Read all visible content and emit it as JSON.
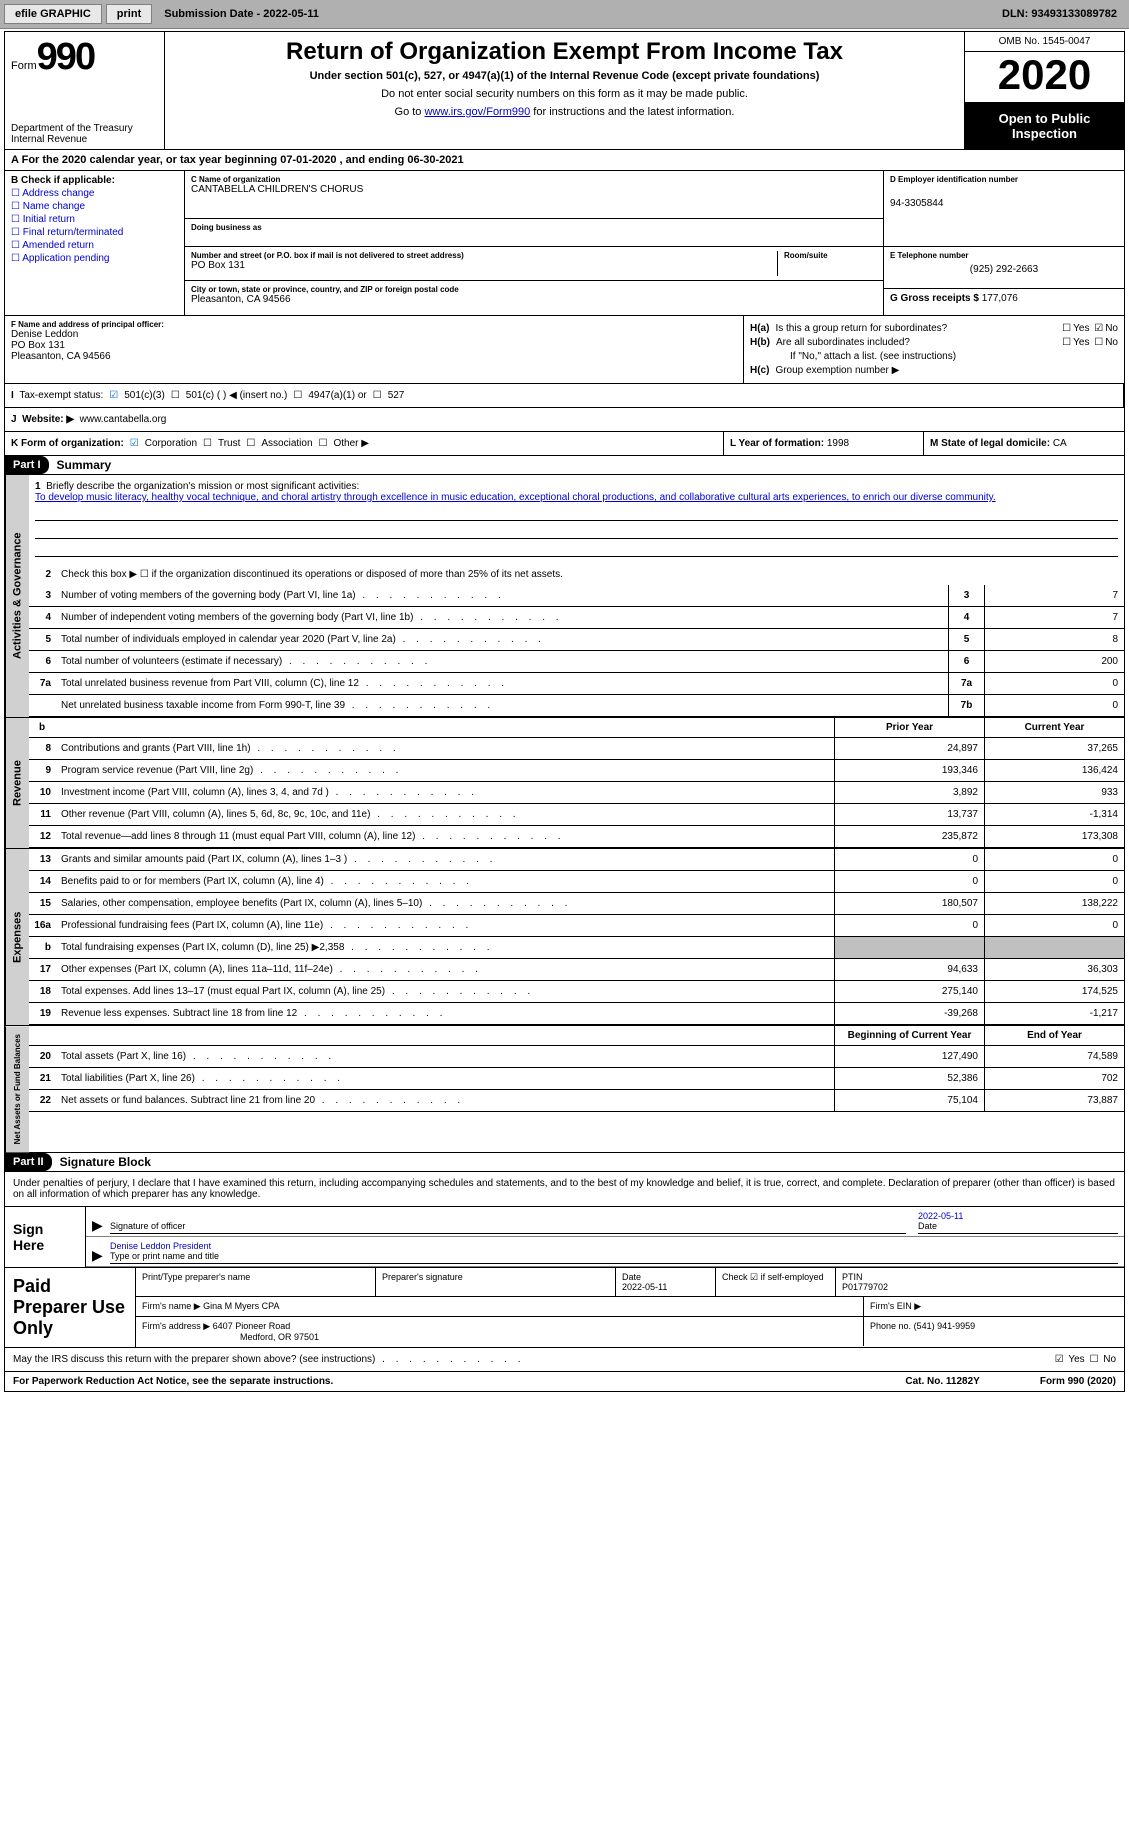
{
  "toolbar": {
    "efile": "efile GRAPHIC",
    "print": "print",
    "submission": "Submission Date - 2022-05-11",
    "dln": "DLN: 93493133089782"
  },
  "header": {
    "form_label": "Form",
    "form_number": "990",
    "dept": "Department of the Treasury\nInternal Revenue",
    "title": "Return of Organization Exempt From Income Tax",
    "subtitle": "Under section 501(c), 527, or 4947(a)(1) of the Internal Revenue Code (except private foundations)",
    "note1": "Do not enter social security numbers on this form as it may be made public.",
    "note2_pre": "Go to ",
    "note2_link": "www.irs.gov/Form990",
    "note2_post": " for instructions and the latest information.",
    "omb": "OMB No. 1545-0047",
    "year": "2020",
    "open": "Open to Public Inspection"
  },
  "period": "For the 2020 calendar year, or tax year beginning 07-01-2020    , and ending 06-30-2021",
  "boxB": {
    "label": "B Check if applicable:",
    "opts": [
      "Address change",
      "Name change",
      "Initial return",
      "Final return/terminated",
      "Amended return",
      "Application pending"
    ]
  },
  "org": {
    "name_lbl": "C Name of organization",
    "name": "CANTABELLA CHILDREN'S CHORUS",
    "dba_lbl": "Doing business as",
    "addr_lbl": "Number and street (or P.O. box if mail is not delivered to street address)",
    "room_lbl": "Room/suite",
    "addr": "PO Box 131",
    "city_lbl": "City or town, state or province, country, and ZIP or foreign postal code",
    "city": "Pleasanton, CA  94566"
  },
  "boxD": {
    "ein_lbl": "D Employer identification number",
    "ein": "94-3305844",
    "tel_lbl": "E Telephone number",
    "tel": "(925) 292-2663",
    "gross_lbl": "G Gross receipts $",
    "gross": "177,076"
  },
  "boxF": {
    "lbl": "F  Name and address of principal officer:",
    "name": "Denise Leddon",
    "addr1": "PO Box 131",
    "addr2": "Pleasanton, CA  94566"
  },
  "boxH": {
    "a": "Is this a group return for subordinates?",
    "b": "Are all subordinates included?",
    "note": "If \"No,\" attach a list. (see instructions)",
    "c": "Group exemption number ▶"
  },
  "status": {
    "lbl": "Tax-exempt status:",
    "opts": [
      "501(c)(3)",
      "501(c) (   ) ◀ (insert no.)",
      "4947(a)(1) or",
      "527"
    ]
  },
  "website": {
    "lbl": "Website: ▶",
    "val": "www.cantabella.org"
  },
  "korg": {
    "lbl": "K Form of organization:",
    "opts": [
      "Corporation",
      "Trust",
      "Association",
      "Other ▶"
    ]
  },
  "lm": {
    "l_lbl": "L Year of formation:",
    "l_val": "1998",
    "m_lbl": "M State of legal domicile:",
    "m_val": "CA"
  },
  "part1": {
    "hdr": "Part I",
    "title": "Summary"
  },
  "gov": {
    "vtab": "Activities & Governance",
    "q1_lbl": "Briefly describe the organization's mission or most significant activities:",
    "q1_val": "To develop music literacy, healthy vocal technique, and choral artistry through excellence in music education, exceptional choral productions, and collaborative cultural arts experiences, to enrich our diverse community.",
    "q2": "Check this box ▶ ☐  if the organization discontinued its operations or disposed of more than 25% of its net assets.",
    "lines": [
      {
        "n": "3",
        "t": "Number of voting members of the governing body (Part VI, line 1a)",
        "box": "3",
        "v": "7"
      },
      {
        "n": "4",
        "t": "Number of independent voting members of the governing body (Part VI, line 1b)",
        "box": "4",
        "v": "7"
      },
      {
        "n": "5",
        "t": "Total number of individuals employed in calendar year 2020 (Part V, line 2a)",
        "box": "5",
        "v": "8"
      },
      {
        "n": "6",
        "t": "Total number of volunteers (estimate if necessary)",
        "box": "6",
        "v": "200"
      },
      {
        "n": "7a",
        "t": "Total unrelated business revenue from Part VIII, column (C), line 12",
        "box": "7a",
        "v": "0"
      },
      {
        "n": "",
        "t": "Net unrelated business taxable income from Form 990-T, line 39",
        "box": "7b",
        "v": "0"
      }
    ]
  },
  "rev": {
    "vtab": "Revenue",
    "hdr_prior": "Prior Year",
    "hdr_cur": "Current Year",
    "lines": [
      {
        "n": "8",
        "t": "Contributions and grants (Part VIII, line 1h)",
        "p": "24,897",
        "c": "37,265"
      },
      {
        "n": "9",
        "t": "Program service revenue (Part VIII, line 2g)",
        "p": "193,346",
        "c": "136,424"
      },
      {
        "n": "10",
        "t": "Investment income (Part VIII, column (A), lines 3, 4, and 7d )",
        "p": "3,892",
        "c": "933"
      },
      {
        "n": "11",
        "t": "Other revenue (Part VIII, column (A), lines 5, 6d, 8c, 9c, 10c, and 11e)",
        "p": "13,737",
        "c": "-1,314"
      },
      {
        "n": "12",
        "t": "Total revenue—add lines 8 through 11 (must equal Part VIII, column (A), line 12)",
        "p": "235,872",
        "c": "173,308"
      }
    ]
  },
  "exp": {
    "vtab": "Expenses",
    "lines": [
      {
        "n": "13",
        "t": "Grants and similar amounts paid (Part IX, column (A), lines 1–3 )",
        "p": "0",
        "c": "0"
      },
      {
        "n": "14",
        "t": "Benefits paid to or for members (Part IX, column (A), line 4)",
        "p": "0",
        "c": "0"
      },
      {
        "n": "15",
        "t": "Salaries, other compensation, employee benefits (Part IX, column (A), lines 5–10)",
        "p": "180,507",
        "c": "138,222"
      },
      {
        "n": "16a",
        "t": "Professional fundraising fees (Part IX, column (A), line 11e)",
        "p": "0",
        "c": "0"
      },
      {
        "n": "b",
        "t": "Total fundraising expenses (Part IX, column (D), line 25) ▶2,358",
        "p": "",
        "c": "",
        "shaded": true
      },
      {
        "n": "17",
        "t": "Other expenses (Part IX, column (A), lines 11a–11d, 11f–24e)",
        "p": "94,633",
        "c": "36,303"
      },
      {
        "n": "18",
        "t": "Total expenses. Add lines 13–17 (must equal Part IX, column (A), line 25)",
        "p": "275,140",
        "c": "174,525"
      },
      {
        "n": "19",
        "t": "Revenue less expenses. Subtract line 18 from line 12",
        "p": "-39,268",
        "c": "-1,217"
      }
    ]
  },
  "net": {
    "vtab": "Net Assets or Fund Balances",
    "hdr_begin": "Beginning of Current Year",
    "hdr_end": "End of Year",
    "lines": [
      {
        "n": "20",
        "t": "Total assets (Part X, line 16)",
        "p": "127,490",
        "c": "74,589"
      },
      {
        "n": "21",
        "t": "Total liabilities (Part X, line 26)",
        "p": "52,386",
        "c": "702"
      },
      {
        "n": "22",
        "t": "Net assets or fund balances. Subtract line 21 from line 20",
        "p": "75,104",
        "c": "73,887"
      }
    ]
  },
  "part2": {
    "hdr": "Part II",
    "title": "Signature Block"
  },
  "sig": {
    "caption": "Under penalties of perjury, I declare that I have examined this return, including accompanying schedules and statements, and to the best of my knowledge and belief, it is true, correct, and complete. Declaration of preparer (other than officer) is based on all information of which preparer has any knowledge.",
    "here": "Sign Here",
    "officer_lbl": "Signature of officer",
    "date_lbl": "Date",
    "date_val": "2022-05-11",
    "name_lbl": "Type or print name and title",
    "name_val": "Denise Leddon  President"
  },
  "prep": {
    "here": "Paid Preparer Use Only",
    "row1": {
      "c1_lbl": "Print/Type preparer's name",
      "c2_lbl": "Preparer's signature",
      "c3_lbl": "Date",
      "c3_val": "2022-05-11",
      "c4_lbl": "Check ☑ if self-employed",
      "c5_lbl": "PTIN",
      "c5_val": "P01779702"
    },
    "row2": {
      "c1_lbl": "Firm's name    ▶",
      "c1_val": "Gina M Myers CPA",
      "c2_lbl": "Firm's EIN ▶"
    },
    "row3": {
      "c1_lbl": "Firm's address ▶",
      "c1_val": "6407 Pioneer Road",
      "c1_val2": "Medford, OR  97501",
      "c2_lbl": "Phone no.",
      "c2_val": "(541) 941-9959"
    }
  },
  "discuss": "May the IRS discuss this return with the preparer shown above? (see instructions)",
  "footer": {
    "pra": "For Paperwork Reduction Act Notice, see the separate instructions.",
    "cat": "Cat. No. 11282Y",
    "form": "Form 990 (2020)"
  }
}
